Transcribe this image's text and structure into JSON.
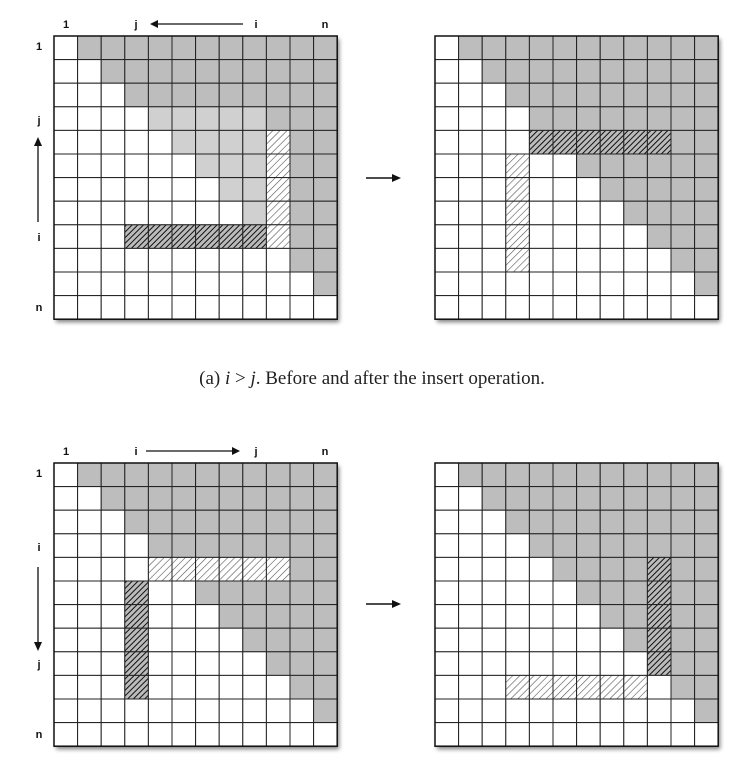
{
  "caption_a": {
    "prefix": "(a) ",
    "var_i": "i",
    "relation": " > ",
    "var_j": "j",
    "suffix": ". Before and after the insert operation."
  },
  "panels": [
    {
      "name": "before-a",
      "labels": {
        "top_one": "1",
        "top_j": "j",
        "top_i": "i",
        "top_n": "n",
        "left_one": "1",
        "left_j": "j",
        "left_i": "i",
        "left_n": "n"
      },
      "arrow_direction": "left-up",
      "dark_gray_upper": true,
      "light_gray": [
        [
          4,
          6
        ],
        [
          4,
          7
        ],
        [
          4,
          8
        ],
        [
          5,
          7
        ],
        [
          5,
          8
        ],
        [
          6,
          8
        ],
        [
          7,
          8
        ]
      ],
      "hatch_light": [
        [
          4,
          9
        ],
        [
          5,
          9
        ],
        [
          6,
          9
        ],
        [
          7,
          9
        ],
        [
          8,
          9
        ]
      ],
      "hatch_dark": [
        [
          8,
          3
        ],
        [
          8,
          4
        ],
        [
          8,
          5
        ],
        [
          8,
          6
        ],
        [
          8,
          7
        ],
        [
          8,
          8
        ]
      ],
      "white_override": [
        [
          4,
          6
        ],
        [
          4,
          7
        ],
        [
          4,
          8
        ],
        [
          5,
          7
        ],
        [
          5,
          8
        ],
        [
          6,
          8
        ],
        [
          7,
          8
        ]
      ],
      "extra_gray": []
    },
    {
      "name": "after-a",
      "labels": {},
      "arrow_direction": "none",
      "dark_gray_upper": true,
      "hatch_dark": [
        [
          4,
          4
        ],
        [
          4,
          5
        ],
        [
          4,
          6
        ],
        [
          4,
          7
        ],
        [
          4,
          8
        ],
        [
          4,
          9
        ]
      ],
      "hatch_light": [
        [
          5,
          3
        ],
        [
          6,
          3
        ],
        [
          7,
          3
        ],
        [
          8,
          3
        ],
        [
          9,
          3
        ]
      ],
      "light_gray": [],
      "white_override": [],
      "extra_gray": []
    },
    {
      "name": "before-b",
      "labels": {
        "top_one": "1",
        "top_i": "i",
        "top_j": "j",
        "top_n": "n",
        "left_one": "1",
        "left_i": "i",
        "left_j": "j",
        "left_n": "n"
      },
      "arrow_direction": "right-down",
      "dark_gray_upper": true,
      "hatch_light": [
        [
          4,
          4
        ],
        [
          4,
          5
        ],
        [
          4,
          6
        ],
        [
          4,
          7
        ],
        [
          4,
          8
        ],
        [
          4,
          9
        ]
      ],
      "hatch_dark": [
        [
          5,
          3
        ],
        [
          6,
          3
        ],
        [
          7,
          3
        ],
        [
          8,
          3
        ],
        [
          9,
          3
        ]
      ],
      "light_gray": [],
      "white_override": [],
      "extra_gray": []
    },
    {
      "name": "after-b",
      "labels": {},
      "arrow_direction": "none",
      "dark_gray_upper": true,
      "hatch_dark": [
        [
          4,
          9
        ],
        [
          5,
          9
        ],
        [
          6,
          9
        ],
        [
          7,
          9
        ],
        [
          8,
          9
        ]
      ],
      "hatch_light": [
        [
          9,
          3
        ],
        [
          9,
          4
        ],
        [
          9,
          5
        ],
        [
          9,
          6
        ],
        [
          9,
          7
        ],
        [
          9,
          8
        ]
      ],
      "light_gray": [],
      "white_override": [],
      "extra_gray": []
    }
  ]
}
